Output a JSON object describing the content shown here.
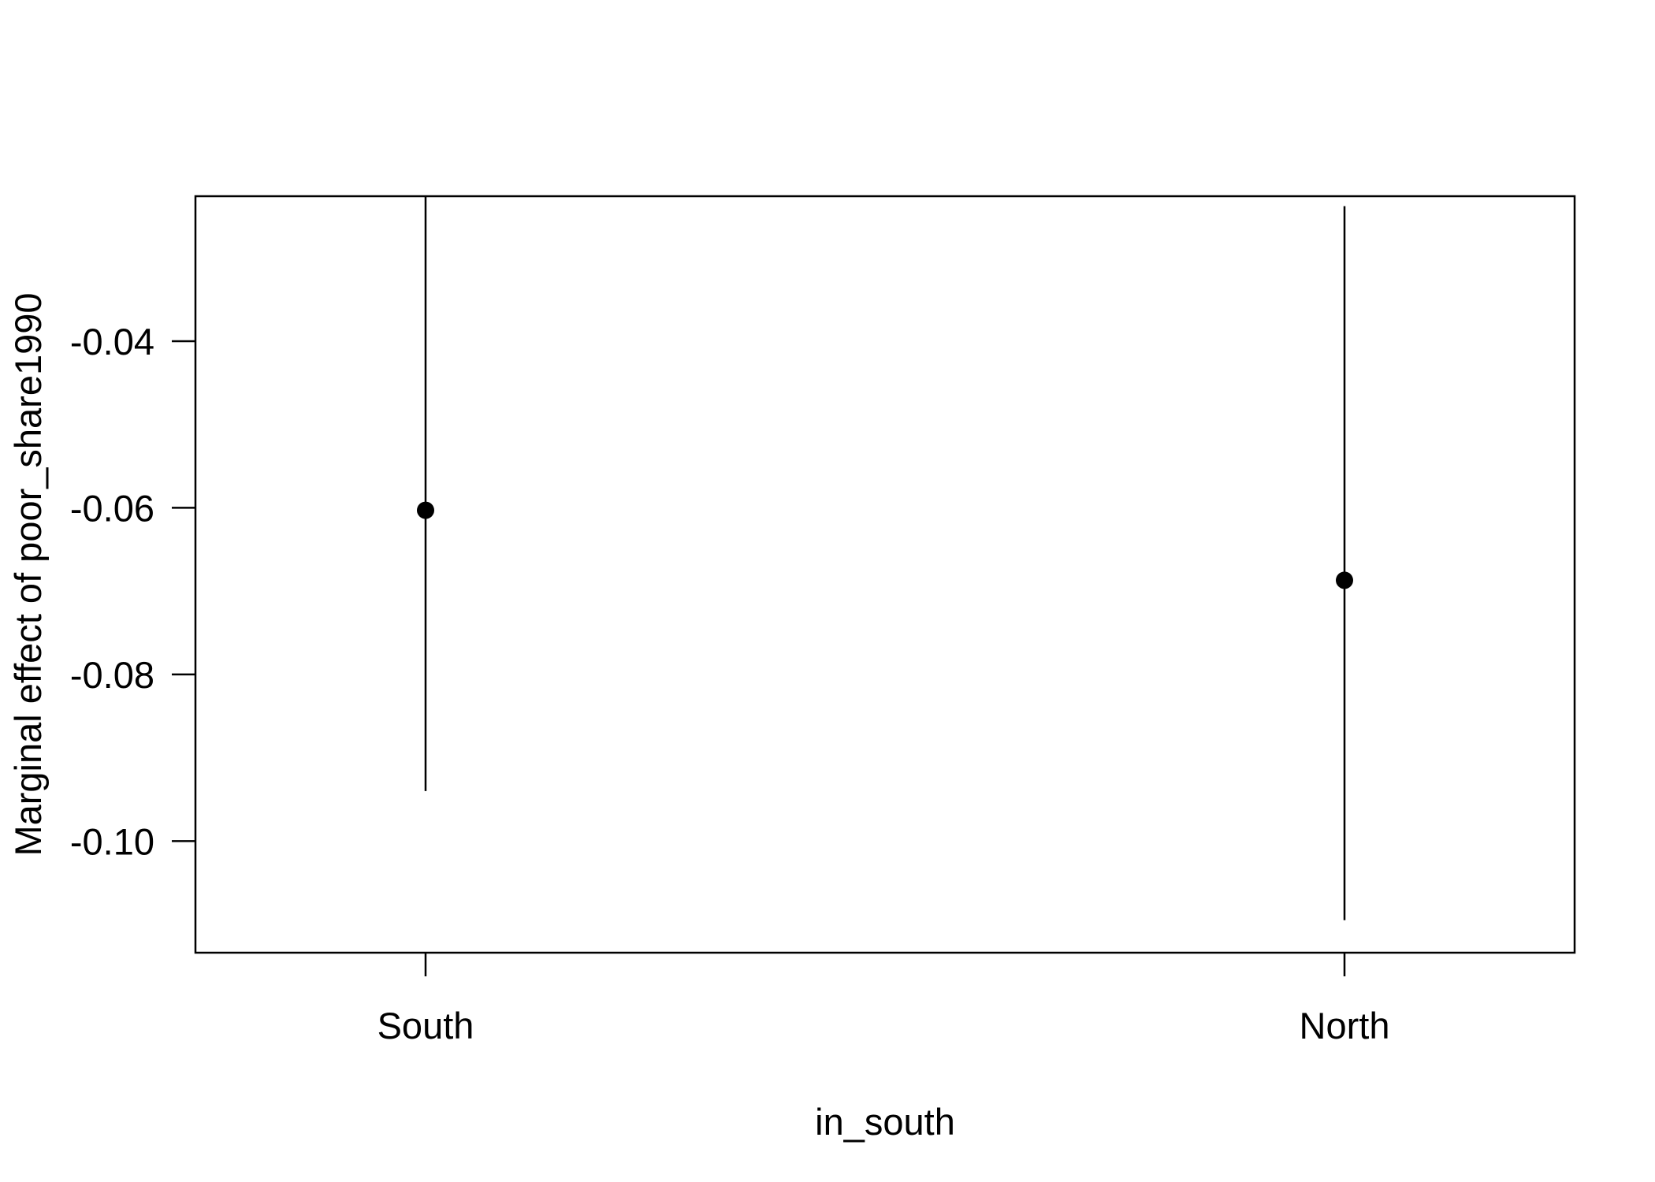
{
  "chart_data": {
    "type": "scatter",
    "title": "",
    "xlabel": "in_south",
    "ylabel": "Marginal effect of poor_share1990",
    "categories": [
      "South",
      "North"
    ],
    "estimates": [
      -0.0603,
      -0.0687
    ],
    "ci_lower": [
      -0.094,
      -0.1095
    ],
    "ci_upper": [
      -0.0225,
      -0.0238
    ],
    "yticks": [
      -0.04,
      -0.06,
      -0.08,
      -0.1
    ],
    "ytick_labels": [
      "-0.04",
      "-0.06",
      "-0.08",
      "-0.10"
    ],
    "ylim": [
      -0.1134,
      -0.0226
    ],
    "grid": false,
    "legend": "none",
    "colors": {
      "mark": "#000000",
      "background": "#ffffff"
    }
  }
}
